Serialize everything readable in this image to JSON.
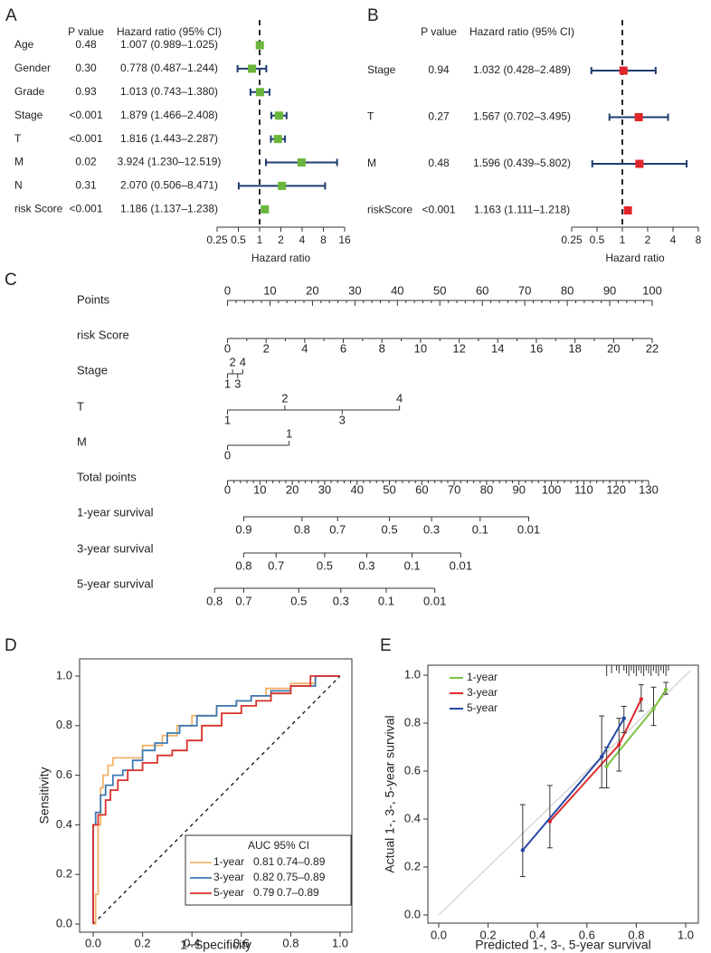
{
  "colors": {
    "green": "#6ab63c",
    "red": "#e0262c",
    "ci": "#203d6e",
    "gray": "#333333",
    "orange": "#f2b26b",
    "steel": "#3d79b3",
    "roc_red": "#d9312c",
    "cal_green": "#7cc243",
    "cal_red": "#dd2b2b",
    "cal_blue": "#2748a6"
  },
  "chart_data": [
    {
      "panel": "A",
      "type": "forest",
      "header": {
        "p": "P value",
        "hr": "Hazard ratio (95% CI)"
      },
      "xlabel": "Hazard ratio",
      "xscale": "log2",
      "xticks": [
        0.25,
        0.5,
        1,
        2,
        4,
        8,
        16
      ],
      "xtick_labels": [
        "0.25",
        "0.5",
        "1",
        "2",
        "4",
        "8",
        "16"
      ],
      "xlim": [
        0.25,
        16
      ],
      "reference": 1,
      "rows": [
        {
          "label": "Age",
          "p": "0.48",
          "hr_text": "1.007 (0.989–1.025)",
          "hr": 1.007,
          "lo": 0.989,
          "hi": 1.025
        },
        {
          "label": "Gender",
          "p": "0.30",
          "hr_text": "0.778 (0.487–1.244)",
          "hr": 0.778,
          "lo": 0.487,
          "hi": 1.244
        },
        {
          "label": "Grade",
          "p": "0.93",
          "hr_text": "1.013 (0.743–1.380)",
          "hr": 1.013,
          "lo": 0.743,
          "hi": 1.38
        },
        {
          "label": "Stage",
          "p": "<0.001",
          "hr_text": "1.879 (1.466–2.408)",
          "hr": 1.879,
          "lo": 1.466,
          "hi": 2.408
        },
        {
          "label": "T",
          "p": "<0.001",
          "hr_text": "1.816 (1.443–2.287)",
          "hr": 1.816,
          "lo": 1.443,
          "hi": 2.287
        },
        {
          "label": "M",
          "p": "0.02",
          "hr_text": "3.924 (1.230–12.519)",
          "hr": 3.924,
          "lo": 1.23,
          "hi": 12.519
        },
        {
          "label": "N",
          "p": "0.31",
          "hr_text": "2.070 (0.506–8.471)",
          "hr": 2.07,
          "lo": 0.506,
          "hi": 8.471
        },
        {
          "label": "risk Score",
          "p": "<0.001",
          "hr_text": "1.186 (1.137–1.238)",
          "hr": 1.186,
          "lo": 1.137,
          "hi": 1.238
        }
      ]
    },
    {
      "panel": "B",
      "type": "forest",
      "header": {
        "p": "P value",
        "hr": "Hazard ratio (95% CI)"
      },
      "xlabel": "Hazard ratio",
      "xscale": "log2",
      "xticks": [
        0.25,
        0.5,
        1,
        2,
        4,
        8
      ],
      "xtick_labels": [
        "0.25",
        "0.5",
        "1",
        "2",
        "4",
        "8"
      ],
      "xlim": [
        0.25,
        8
      ],
      "reference": 1,
      "rows": [
        {
          "label": "Stage",
          "p": "0.94",
          "hr_text": "1.032 (0.428–2.489)",
          "hr": 1.032,
          "lo": 0.428,
          "hi": 2.489
        },
        {
          "label": "T",
          "p": "0.27",
          "hr_text": "1.567 (0.702–3.495)",
          "hr": 1.567,
          "lo": 0.702,
          "hi": 3.495
        },
        {
          "label": "M",
          "p": "0.48",
          "hr_text": "1.596 (0.439–5.802)",
          "hr": 1.596,
          "lo": 0.439,
          "hi": 5.802
        },
        {
          "label": "riskScore",
          "p": "<0.001",
          "hr_text": "1.163 (1.111–1.218)",
          "hr": 1.163,
          "lo": 1.111,
          "hi": 1.218
        }
      ]
    },
    {
      "panel": "C",
      "type": "nomogram",
      "points_scale": [
        0,
        100
      ],
      "scales": [
        {
          "label": "Points",
          "range": [
            0,
            100
          ],
          "major": [
            0,
            10,
            20,
            30,
            40,
            50,
            60,
            70,
            80,
            90,
            100
          ],
          "labels_above": [
            "0",
            "10",
            "20",
            "30",
            "40",
            "50",
            "60",
            "70",
            "80",
            "90",
            "100"
          ]
        },
        {
          "label": "risk Score",
          "range": [
            0,
            22
          ],
          "major": [
            0,
            2,
            4,
            6,
            8,
            10,
            12,
            14,
            16,
            18,
            20,
            22
          ],
          "labels_below": [
            "0",
            "2",
            "4",
            "6",
            "8",
            "10",
            "12",
            "14",
            "16",
            "18",
            "20",
            "22"
          ]
        },
        {
          "label": "Stage",
          "levels": [
            "1",
            "2",
            "3",
            "4"
          ],
          "above": [
            "2",
            "4"
          ],
          "below": [
            "1",
            "3"
          ],
          "points": [
            0,
            1.2,
            2.4,
            3.6
          ]
        },
        {
          "label": "T",
          "levels": [
            "1",
            "2",
            "3",
            "4"
          ],
          "above": [
            "2",
            "4"
          ],
          "below": [
            "1",
            "3"
          ],
          "points": [
            0,
            13.5,
            27,
            40.5
          ]
        },
        {
          "label": "M",
          "levels": [
            "0",
            "1"
          ],
          "above": [
            "1"
          ],
          "below": [
            "0"
          ],
          "points": [
            0,
            14.5
          ]
        },
        {
          "label": "Total points",
          "range": [
            0,
            130
          ],
          "major": [
            0,
            10,
            20,
            30,
            40,
            50,
            60,
            70,
            80,
            90,
            100,
            110,
            120,
            130
          ],
          "labels_below": [
            "0",
            "10",
            "20",
            "30",
            "40",
            "50",
            "60",
            "70",
            "80",
            "90",
            "100",
            "110",
            "120",
            "130"
          ]
        },
        {
          "label": "1-year survival",
          "ticks": [
            "0.9",
            "0.8",
            "0.7",
            "0.5",
            "0.3",
            "0.1",
            "0.01"
          ],
          "total_points": [
            5,
            23,
            34,
            50,
            63,
            78,
            93
          ]
        },
        {
          "label": "3-year survival",
          "ticks": [
            "0.8",
            "0.7",
            "0.5",
            "0.3",
            "0.1",
            "0.01"
          ],
          "total_points": [
            5,
            15,
            30,
            43,
            57,
            72
          ]
        },
        {
          "label": "5-year survival",
          "ticks": [
            "0.8",
            "0.7",
            "0.5",
            "0.3",
            "0.1",
            "0.01"
          ],
          "total_points": [
            -4,
            5,
            22,
            35,
            49,
            64
          ]
        }
      ]
    },
    {
      "panel": "D",
      "type": "line",
      "xlabel": "1−Specificity",
      "ylabel": "Sensitivity",
      "xlim": [
        0,
        1
      ],
      "ylim": [
        0,
        1
      ],
      "ticks": [
        "0.0",
        "0.2",
        "0.4",
        "0.6",
        "0.8",
        "1.0"
      ],
      "legend_title": "AUC 95% CI",
      "series": [
        {
          "name": "1-year",
          "auc": "0.81",
          "ci": "0.74–0.89",
          "x": [
            0,
            0.01,
            0.01,
            0.02,
            0.02,
            0.03,
            0.03,
            0.04,
            0.04,
            0.06,
            0.06,
            0.08,
            0.08,
            0.1,
            0.1,
            0.2,
            0.2,
            0.28,
            0.28,
            0.34,
            0.34,
            0.4,
            0.4,
            0.5,
            0.5,
            0.58,
            0.58,
            0.64,
            0.64,
            0.7,
            0.7,
            0.8,
            0.8,
            0.9,
            0.9,
            1
          ],
          "y": [
            0,
            0,
            0.12,
            0.12,
            0.4,
            0.4,
            0.55,
            0.55,
            0.6,
            0.6,
            0.64,
            0.64,
            0.67,
            0.67,
            0.67,
            0.67,
            0.72,
            0.72,
            0.76,
            0.76,
            0.8,
            0.8,
            0.84,
            0.84,
            0.88,
            0.88,
            0.9,
            0.9,
            0.92,
            0.92,
            0.95,
            0.95,
            0.97,
            0.97,
            1,
            1
          ]
        },
        {
          "name": "3-year",
          "auc": "0.82",
          "ci": "0.75–0.89",
          "x": [
            0,
            0,
            0.01,
            0.01,
            0.03,
            0.03,
            0.05,
            0.05,
            0.08,
            0.08,
            0.12,
            0.12,
            0.16,
            0.16,
            0.2,
            0.2,
            0.25,
            0.25,
            0.3,
            0.3,
            0.35,
            0.35,
            0.42,
            0.42,
            0.5,
            0.5,
            0.58,
            0.58,
            0.64,
            0.64,
            0.72,
            0.72,
            0.8,
            0.8,
            0.9,
            0.9,
            1
          ],
          "y": [
            0,
            0.4,
            0.4,
            0.45,
            0.45,
            0.52,
            0.52,
            0.56,
            0.56,
            0.6,
            0.6,
            0.62,
            0.62,
            0.66,
            0.66,
            0.7,
            0.7,
            0.73,
            0.73,
            0.77,
            0.77,
            0.8,
            0.8,
            0.84,
            0.84,
            0.88,
            0.88,
            0.9,
            0.9,
            0.92,
            0.92,
            0.94,
            0.94,
            0.96,
            0.96,
            1,
            1
          ]
        },
        {
          "name": "5-year",
          "auc": "0.79",
          "ci": "0.7–0.89",
          "x": [
            0,
            0,
            0.02,
            0.02,
            0.05,
            0.05,
            0.07,
            0.07,
            0.1,
            0.1,
            0.14,
            0.14,
            0.2,
            0.2,
            0.26,
            0.26,
            0.32,
            0.32,
            0.38,
            0.38,
            0.44,
            0.44,
            0.52,
            0.52,
            0.6,
            0.6,
            0.66,
            0.66,
            0.72,
            0.72,
            0.8,
            0.8,
            0.88,
            0.88,
            1
          ],
          "y": [
            0,
            0.4,
            0.4,
            0.44,
            0.44,
            0.5,
            0.5,
            0.54,
            0.54,
            0.58,
            0.58,
            0.62,
            0.62,
            0.65,
            0.65,
            0.68,
            0.68,
            0.7,
            0.7,
            0.74,
            0.74,
            0.8,
            0.8,
            0.85,
            0.85,
            0.88,
            0.88,
            0.9,
            0.9,
            0.93,
            0.93,
            0.96,
            0.96,
            1,
            1
          ]
        }
      ]
    },
    {
      "panel": "E",
      "type": "line",
      "xlabel": "Predicted 1-, 3-, 5-year survival",
      "ylabel": "Actual 1-, 3-, 5-year survival",
      "xlim": [
        0,
        1
      ],
      "ylim": [
        0,
        1
      ],
      "ticks": [
        "0.0",
        "0.2",
        "0.4",
        "0.6",
        "0.8",
        "1.0"
      ],
      "series": [
        {
          "name": "1-year",
          "x": [
            0.68,
            0.87,
            0.92
          ],
          "y": [
            0.62,
            0.86,
            0.94
          ],
          "lo": [
            0.53,
            0.79,
            0.92
          ],
          "hi": [
            0.7,
            0.95,
            0.97
          ]
        },
        {
          "name": "3-year",
          "x": [
            0.45,
            0.73,
            0.82
          ],
          "y": [
            0.39,
            0.71,
            0.9
          ],
          "lo": [
            0.28,
            0.6,
            0.85
          ],
          "hi": [
            0.54,
            0.82,
            0.96
          ]
        },
        {
          "name": "5-year",
          "x": [
            0.34,
            0.66,
            0.75
          ],
          "y": [
            0.27,
            0.66,
            0.82
          ],
          "lo": [
            0.16,
            0.53,
            0.76
          ],
          "hi": [
            0.46,
            0.83,
            0.87
          ]
        }
      ],
      "rug": [
        0.68,
        0.7,
        0.72,
        0.73,
        0.75,
        0.76,
        0.77,
        0.78,
        0.79,
        0.8,
        0.81,
        0.82,
        0.83,
        0.84,
        0.85,
        0.86,
        0.87,
        0.88,
        0.89,
        0.9,
        0.91,
        0.92,
        0.93
      ]
    }
  ]
}
